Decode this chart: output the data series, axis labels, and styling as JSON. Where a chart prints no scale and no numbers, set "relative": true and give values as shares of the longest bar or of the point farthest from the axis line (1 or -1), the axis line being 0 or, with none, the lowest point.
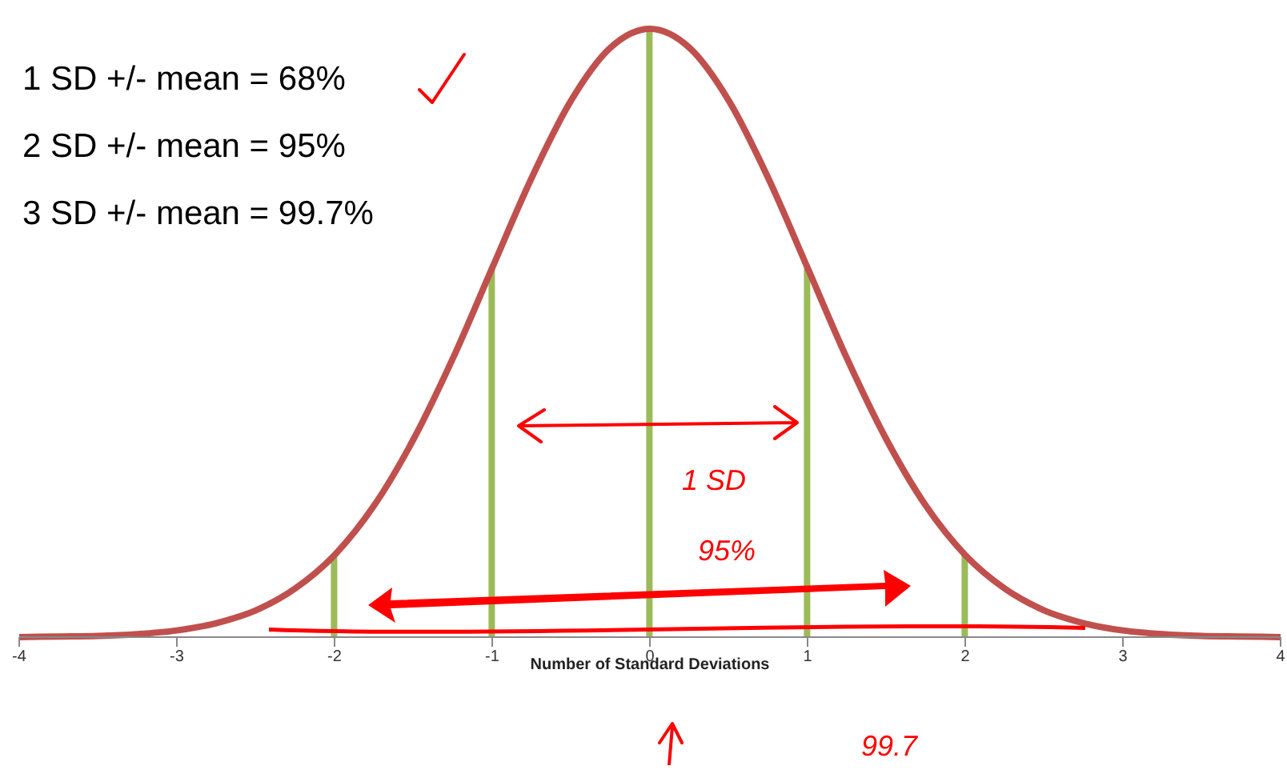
{
  "chart_data": {
    "type": "line",
    "relative": true,
    "xlabel": "Number of Standard Deviations",
    "xlim": [
      -4,
      4
    ],
    "xticks": [
      -4,
      -3,
      -2,
      -1,
      0,
      1,
      2,
      3,
      4
    ],
    "grid": false,
    "legend": false,
    "marker": "none",
    "line_style": "solid",
    "annotations": [
      "1 SD +/- mean = 68%",
      "2 SD +/- mean = 95%",
      "3 SD +/- mean = 99.7%",
      "1 SD",
      "95%",
      "99.7"
    ],
    "series": [
      {
        "color": "#c0504d",
        "x": [
          -4,
          -3.75,
          -3.5,
          -3.25,
          -3,
          -2.75,
          -2.5,
          -2.25,
          -2,
          -1.75,
          -1.5,
          -1.25,
          -1,
          -0.75,
          -0.5,
          -0.25,
          0,
          0.25,
          0.5,
          0.75,
          1,
          1.25,
          1.5,
          1.75,
          2,
          2.25,
          2.5,
          2.75,
          3,
          3.25,
          3.5,
          3.75,
          4
        ],
        "values": [
          0,
          0.001,
          0.002,
          0.005,
          0.011,
          0.023,
          0.044,
          0.08,
          0.135,
          0.216,
          0.325,
          0.458,
          0.607,
          0.755,
          0.882,
          0.969,
          1,
          0.969,
          0.882,
          0.755,
          0.607,
          0.458,
          0.325,
          0.216,
          0.135,
          0.08,
          0.044,
          0.023,
          0.011,
          0.005,
          0.002,
          0.001,
          0
        ]
      },
      {
        "type": "bar",
        "color": "#9bbb59",
        "x": [
          -2,
          -1,
          0,
          1,
          2
        ],
        "values": [
          0.135,
          0.607,
          1,
          0.607,
          0.135
        ]
      }
    ]
  }
}
